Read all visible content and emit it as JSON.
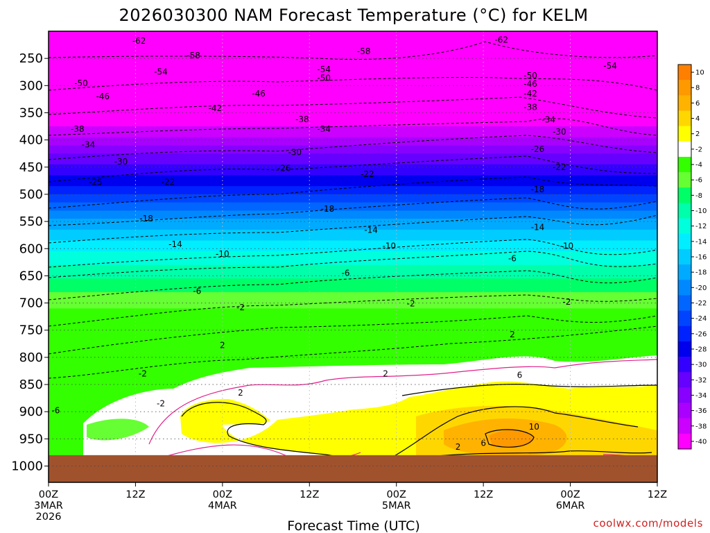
{
  "title": "2026030300 NAM Forecast Temperature (°C) for KELM",
  "credit": "coolwx.com/models",
  "colors": {
    "ground": "#a0522d",
    "freezing_contour": "#e0208a",
    "contour": "#000000"
  },
  "chart_data": {
    "type": "time-height contour",
    "title": "2026030300 NAM Forecast Temperature (°C) for KELM",
    "xlabel": "Forecast Time (UTC)",
    "ylabel": "",
    "x_ticks": [
      {
        "hours": 0,
        "lines": [
          "00Z",
          "3MAR",
          "2026"
        ]
      },
      {
        "hours": 12,
        "lines": [
          "12Z"
        ]
      },
      {
        "hours": 24,
        "lines": [
          "00Z",
          "4MAR"
        ]
      },
      {
        "hours": 36,
        "lines": [
          "12Z"
        ]
      },
      {
        "hours": 48,
        "lines": [
          "00Z",
          "5MAR"
        ]
      },
      {
        "hours": 60,
        "lines": [
          "12Z"
        ]
      },
      {
        "hours": 72,
        "lines": [
          "00Z",
          "6MAR"
        ]
      },
      {
        "hours": 84,
        "lines": [
          "12Z"
        ]
      }
    ],
    "x_range_hours": [
      0,
      84
    ],
    "y_ticks": [
      "250",
      "300",
      "350",
      "400",
      "450",
      "500",
      "550",
      "600",
      "650",
      "700",
      "750",
      "800",
      "850",
      "900",
      "950",
      "1000"
    ],
    "y_unit": "hPa",
    "y_range_hpa": [
      200,
      1030
    ],
    "ground_top_hpa": 980,
    "colorbar_labels": [
      "10",
      "8",
      "6",
      "4",
      "2",
      "-2",
      "-4",
      "-6",
      "-8",
      "-10",
      "-12",
      "-14",
      "-16",
      "-18",
      "-20",
      "-22",
      "-24",
      "-26",
      "-28",
      "-30",
      "-32",
      "-34",
      "-36",
      "-38",
      "-40"
    ],
    "colorbar_levels": [
      {
        "label": "10",
        "color": "#ff7f00"
      },
      {
        "label": "8",
        "color": "#ff9900"
      },
      {
        "label": "6",
        "color": "#ffb200"
      },
      {
        "label": "4",
        "color": "#ffd700"
      },
      {
        "label": "2",
        "color": "#ffff00"
      },
      {
        "label": "-2",
        "color": "#ffffff"
      },
      {
        "label": "-4",
        "color": "#33ff00"
      },
      {
        "label": "-6",
        "color": "#66ff33"
      },
      {
        "label": "-8",
        "color": "#00ff66"
      },
      {
        "label": "-10",
        "color": "#00ffaa"
      },
      {
        "label": "-12",
        "color": "#00ffdd"
      },
      {
        "label": "-14",
        "color": "#00eeff"
      },
      {
        "label": "-16",
        "color": "#00ccff"
      },
      {
        "label": "-18",
        "color": "#00aaff"
      },
      {
        "label": "-20",
        "color": "#0088ff"
      },
      {
        "label": "-22",
        "color": "#0066ff"
      },
      {
        "label": "-24",
        "color": "#0044ff"
      },
      {
        "label": "-26",
        "color": "#0022ff"
      },
      {
        "label": "-28",
        "color": "#0000ee"
      },
      {
        "label": "-30",
        "color": "#3300ff"
      },
      {
        "label": "-32",
        "color": "#6600ff"
      },
      {
        "label": "-34",
        "color": "#8800ff"
      },
      {
        "label": "-36",
        "color": "#aa00ff"
      },
      {
        "label": "-38",
        "color": "#cc00ff"
      },
      {
        "label": "-40",
        "color": "#ff00ff"
      }
    ],
    "temperature_bands": [
      {
        "top_hpa": 200,
        "bottom_hpa": 375,
        "color": "#ff00ff"
      },
      {
        "top_hpa": 375,
        "bottom_hpa": 395,
        "color": "#cc00ff"
      },
      {
        "top_hpa": 395,
        "bottom_hpa": 410,
        "color": "#aa00ff"
      },
      {
        "top_hpa": 410,
        "bottom_hpa": 425,
        "color": "#8800ff"
      },
      {
        "top_hpa": 425,
        "bottom_hpa": 445,
        "color": "#6600ff"
      },
      {
        "top_hpa": 445,
        "bottom_hpa": 465,
        "color": "#3300ff"
      },
      {
        "top_hpa": 465,
        "bottom_hpa": 485,
        "color": "#0000ee"
      },
      {
        "top_hpa": 485,
        "bottom_hpa": 500,
        "color": "#0022ff"
      },
      {
        "top_hpa": 500,
        "bottom_hpa": 515,
        "color": "#0044ff"
      },
      {
        "top_hpa": 515,
        "bottom_hpa": 530,
        "color": "#0066ff"
      },
      {
        "top_hpa": 530,
        "bottom_hpa": 545,
        "color": "#0088ff"
      },
      {
        "top_hpa": 545,
        "bottom_hpa": 565,
        "color": "#00aaff"
      },
      {
        "top_hpa": 565,
        "bottom_hpa": 585,
        "color": "#00ccff"
      },
      {
        "top_hpa": 585,
        "bottom_hpa": 605,
        "color": "#00eeff"
      },
      {
        "top_hpa": 605,
        "bottom_hpa": 630,
        "color": "#00ffdd"
      },
      {
        "top_hpa": 630,
        "bottom_hpa": 655,
        "color": "#00ffaa"
      },
      {
        "top_hpa": 655,
        "bottom_hpa": 680,
        "color": "#00ff66"
      },
      {
        "top_hpa": 680,
        "bottom_hpa": 710,
        "color": "#66ff33"
      },
      {
        "top_hpa": 710,
        "bottom_hpa": 980,
        "color": "#33ff00"
      }
    ],
    "isotherm_labels": [
      {
        "text": "-62",
        "hours": 12.5,
        "hpa": 218
      },
      {
        "text": "-62",
        "hours": 62.5,
        "hpa": 216
      },
      {
        "text": "-58",
        "hours": 20,
        "hpa": 245
      },
      {
        "text": "-58",
        "hours": 43.5,
        "hpa": 237
      },
      {
        "text": "-54",
        "hours": 15.5,
        "hpa": 275
      },
      {
        "text": "-54",
        "hours": 38,
        "hpa": 270
      },
      {
        "text": "-54",
        "hours": 77.5,
        "hpa": 264
      },
      {
        "text": "-50",
        "hours": 4.5,
        "hpa": 296
      },
      {
        "text": "-50",
        "hours": 38,
        "hpa": 286
      },
      {
        "text": "-50",
        "hours": 66.5,
        "hpa": 282
      },
      {
        "text": "-46",
        "hours": 7.5,
        "hpa": 320
      },
      {
        "text": "-46",
        "hours": 29,
        "hpa": 315
      },
      {
        "text": "-46",
        "hours": 66.5,
        "hpa": 297
      },
      {
        "text": "-42",
        "hours": 23,
        "hpa": 342
      },
      {
        "text": "-42",
        "hours": 66.5,
        "hpa": 315
      },
      {
        "text": "-38",
        "hours": 4,
        "hpa": 380
      },
      {
        "text": "-38",
        "hours": 35,
        "hpa": 362
      },
      {
        "text": "-38",
        "hours": 66.5,
        "hpa": 340
      },
      {
        "text": "-34",
        "hours": 5.5,
        "hpa": 409
      },
      {
        "text": "-34",
        "hours": 38,
        "hpa": 380
      },
      {
        "text": "-34",
        "hours": 69,
        "hpa": 363
      },
      {
        "text": "-30",
        "hours": 10,
        "hpa": 440
      },
      {
        "text": "-30",
        "hours": 34,
        "hpa": 423
      },
      {
        "text": "-30",
        "hours": 70.5,
        "hpa": 385
      },
      {
        "text": "-26",
        "hours": 32.5,
        "hpa": 452
      },
      {
        "text": "-26",
        "hours": 67.5,
        "hpa": 417
      },
      {
        "text": "-25",
        "hours": 6.5,
        "hpa": 478
      },
      {
        "text": "-22",
        "hours": 16.5,
        "hpa": 478
      },
      {
        "text": "-22",
        "hours": 44,
        "hpa": 463
      },
      {
        "text": "-22",
        "hours": 70.5,
        "hpa": 450
      },
      {
        "text": "-18",
        "hours": 13.5,
        "hpa": 545
      },
      {
        "text": "-18",
        "hours": 38.5,
        "hpa": 527
      },
      {
        "text": "-18",
        "hours": 67.5,
        "hpa": 491
      },
      {
        "text": "-14",
        "hours": 17.5,
        "hpa": 592
      },
      {
        "text": "-14",
        "hours": 44.5,
        "hpa": 566
      },
      {
        "text": "-14",
        "hours": 67.5,
        "hpa": 561
      },
      {
        "text": "-10",
        "hours": 24,
        "hpa": 610
      },
      {
        "text": "-10",
        "hours": 47,
        "hpa": 595
      },
      {
        "text": "-10",
        "hours": 71.5,
        "hpa": 595
      },
      {
        "text": "-6",
        "hours": 41,
        "hpa": 645
      },
      {
        "text": "-6",
        "hours": 64,
        "hpa": 618
      },
      {
        "text": "-6",
        "hours": 20.5,
        "hpa": 678
      },
      {
        "text": "-6",
        "hours": 1,
        "hpa": 898
      },
      {
        "text": "-2",
        "hours": 26.5,
        "hpa": 708
      },
      {
        "text": "-2",
        "hours": 50,
        "hpa": 701
      },
      {
        "text": "-2",
        "hours": 71.5,
        "hpa": 698
      },
      {
        "text": "-2",
        "hours": 13,
        "hpa": 830
      },
      {
        "text": "-2",
        "hours": 15.5,
        "hpa": 885
      },
      {
        "text": "2",
        "hours": 24,
        "hpa": 778
      },
      {
        "text": "2",
        "hours": 26.5,
        "hpa": 865
      },
      {
        "text": "2",
        "hours": 46.5,
        "hpa": 830
      },
      {
        "text": "2",
        "hours": 64,
        "hpa": 758
      },
      {
        "text": "2",
        "hours": 56.5,
        "hpa": 965
      },
      {
        "text": "6",
        "hours": 65,
        "hpa": 833
      },
      {
        "text": "6",
        "hours": 60,
        "hpa": 958
      },
      {
        "text": "10",
        "hours": 67,
        "hpa": 928
      }
    ]
  }
}
